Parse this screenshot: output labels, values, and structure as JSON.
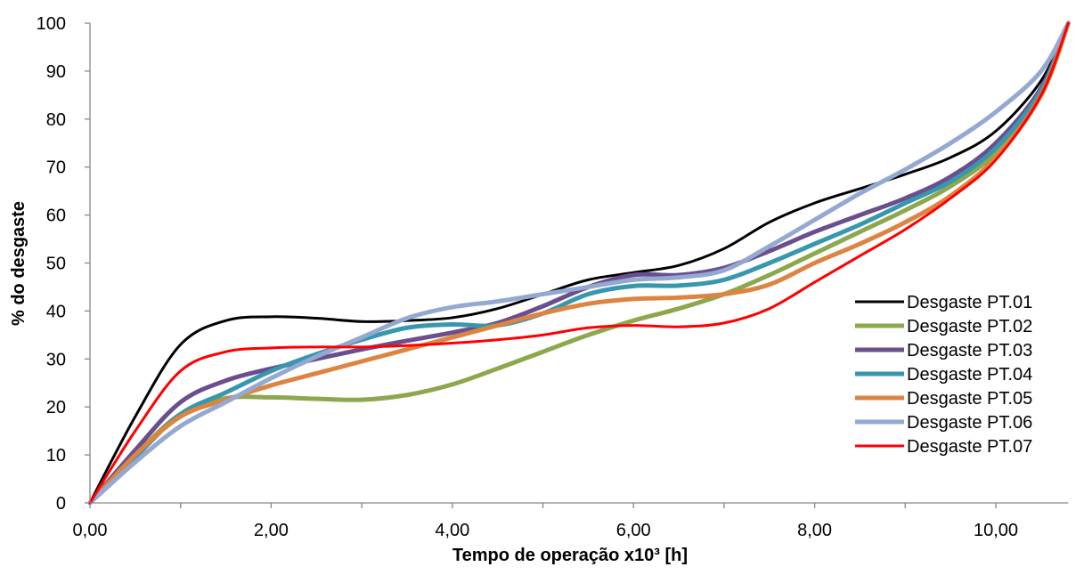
{
  "chart_data": {
    "type": "line",
    "title": "",
    "xlabel": "Tempo de operação x10³ [h]",
    "ylabel": "% do desgaste",
    "xlim": [
      0,
      10.8
    ],
    "ylim": [
      0,
      100
    ],
    "x_ticks": [
      0,
      2,
      4,
      6,
      8,
      10
    ],
    "x_tick_labels": [
      "0,00",
      "2,00",
      "4,00",
      "6,00",
      "8,00",
      "10,00"
    ],
    "x_minor_ticks": [
      1,
      3,
      5,
      7,
      9
    ],
    "y_ticks": [
      0,
      10,
      20,
      30,
      40,
      50,
      60,
      70,
      80,
      90,
      100
    ],
    "y_tick_labels": [
      "0",
      "10",
      "20",
      "30",
      "40",
      "50",
      "60",
      "70",
      "80",
      "90",
      "100"
    ],
    "grid": false,
    "legend_position": "right",
    "series": [
      {
        "name": "Desgaste PT.01",
        "color": "#000000",
        "points": [
          [
            0,
            0
          ],
          [
            0.5,
            18
          ],
          [
            1,
            33
          ],
          [
            1.5,
            38
          ],
          [
            2,
            38.8
          ],
          [
            2.5,
            38.5
          ],
          [
            3,
            37.8
          ],
          [
            3.5,
            38
          ],
          [
            4,
            38.6
          ],
          [
            4.5,
            40.5
          ],
          [
            5,
            43.5
          ],
          [
            5.5,
            46.5
          ],
          [
            6,
            48
          ],
          [
            6.5,
            49.5
          ],
          [
            7,
            53
          ],
          [
            7.5,
            58.5
          ],
          [
            8,
            62.5
          ],
          [
            8.5,
            65.5
          ],
          [
            9,
            68.5
          ],
          [
            9.5,
            72
          ],
          [
            10,
            77.5
          ],
          [
            10.5,
            88
          ],
          [
            10.8,
            100
          ]
        ]
      },
      {
        "name": "Desgaste PT.02",
        "color": "#8BA84C",
        "points": [
          [
            0,
            0
          ],
          [
            0.5,
            10
          ],
          [
            1,
            18.5
          ],
          [
            1.5,
            21.8
          ],
          [
            2,
            22
          ],
          [
            2.5,
            21.7
          ],
          [
            3,
            21.5
          ],
          [
            3.5,
            22.5
          ],
          [
            4,
            24.7
          ],
          [
            4.5,
            28
          ],
          [
            5,
            31.5
          ],
          [
            5.5,
            35
          ],
          [
            6,
            38
          ],
          [
            6.5,
            40.5
          ],
          [
            7,
            43.5
          ],
          [
            7.5,
            47.5
          ],
          [
            8,
            52
          ],
          [
            8.5,
            56.5
          ],
          [
            9,
            61
          ],
          [
            9.5,
            66
          ],
          [
            10,
            73
          ],
          [
            10.5,
            85
          ],
          [
            10.8,
            100
          ]
        ]
      },
      {
        "name": "Desgaste PT.03",
        "color": "#6A4E8E",
        "points": [
          [
            0,
            0
          ],
          [
            0.5,
            11
          ],
          [
            1,
            21
          ],
          [
            1.5,
            25.5
          ],
          [
            2,
            28
          ],
          [
            2.5,
            30
          ],
          [
            3,
            32
          ],
          [
            3.5,
            33.8
          ],
          [
            4,
            35.5
          ],
          [
            4.5,
            37.5
          ],
          [
            5,
            41
          ],
          [
            5.5,
            45
          ],
          [
            6,
            47.5
          ],
          [
            6.5,
            47.5
          ],
          [
            7,
            49
          ],
          [
            7.5,
            52.5
          ],
          [
            8,
            56.5
          ],
          [
            8.5,
            60
          ],
          [
            9,
            63.5
          ],
          [
            9.5,
            68
          ],
          [
            10,
            75
          ],
          [
            10.5,
            86.5
          ],
          [
            10.8,
            100
          ]
        ]
      },
      {
        "name": "Desgaste PT.04",
        "color": "#3797AE",
        "points": [
          [
            0,
            0
          ],
          [
            0.5,
            9.5
          ],
          [
            1,
            18.5
          ],
          [
            1.5,
            23
          ],
          [
            2,
            27.5
          ],
          [
            2.5,
            31
          ],
          [
            3,
            34
          ],
          [
            3.5,
            36.5
          ],
          [
            4,
            37.2
          ],
          [
            4.5,
            37
          ],
          [
            5,
            39.5
          ],
          [
            5.5,
            43.5
          ],
          [
            6,
            45.2
          ],
          [
            6.5,
            45.3
          ],
          [
            7,
            46.5
          ],
          [
            7.5,
            50
          ],
          [
            8,
            54
          ],
          [
            8.5,
            58
          ],
          [
            9,
            62.5
          ],
          [
            9.5,
            67
          ],
          [
            10,
            74
          ],
          [
            10.5,
            86
          ],
          [
            10.8,
            100
          ]
        ]
      },
      {
        "name": "Desgaste PT.05",
        "color": "#DD8440",
        "points": [
          [
            0,
            0
          ],
          [
            0.5,
            10
          ],
          [
            1,
            18
          ],
          [
            1.5,
            21.5
          ],
          [
            2,
            24.5
          ],
          [
            2.5,
            27
          ],
          [
            3,
            29.5
          ],
          [
            3.5,
            32
          ],
          [
            4,
            34.5
          ],
          [
            4.5,
            37
          ],
          [
            5,
            39.5
          ],
          [
            5.5,
            41.5
          ],
          [
            6,
            42.5
          ],
          [
            6.5,
            42.8
          ],
          [
            7,
            43.5
          ],
          [
            7.5,
            45.5
          ],
          [
            8,
            50
          ],
          [
            8.5,
            54
          ],
          [
            9,
            58.5
          ],
          [
            9.5,
            64
          ],
          [
            10,
            72
          ],
          [
            10.5,
            85
          ],
          [
            10.8,
            100
          ]
        ]
      },
      {
        "name": "Desgaste PT.06",
        "color": "#93A9D1",
        "points": [
          [
            0,
            0
          ],
          [
            0.5,
            8.5
          ],
          [
            1,
            16
          ],
          [
            1.5,
            21
          ],
          [
            2,
            26
          ],
          [
            2.5,
            30.5
          ],
          [
            3,
            34.5
          ],
          [
            3.5,
            38.5
          ],
          [
            4,
            40.8
          ],
          [
            4.5,
            42
          ],
          [
            5,
            43.5
          ],
          [
            5.5,
            45
          ],
          [
            6,
            46.5
          ],
          [
            6.5,
            47
          ],
          [
            7,
            48.5
          ],
          [
            7.5,
            53.5
          ],
          [
            8,
            59
          ],
          [
            8.5,
            64.5
          ],
          [
            9,
            69.5
          ],
          [
            9.5,
            75
          ],
          [
            10,
            81.5
          ],
          [
            10.5,
            90
          ],
          [
            10.8,
            100
          ]
        ]
      },
      {
        "name": "Desgaste PT.07",
        "color": "#FF0000",
        "points": [
          [
            0,
            0
          ],
          [
            0.5,
            15
          ],
          [
            1,
            27.5
          ],
          [
            1.5,
            31.5
          ],
          [
            2,
            32.3
          ],
          [
            2.5,
            32.5
          ],
          [
            3,
            32.5
          ],
          [
            3.5,
            32.8
          ],
          [
            4,
            33.3
          ],
          [
            4.5,
            34
          ],
          [
            5,
            35
          ],
          [
            5.5,
            36.5
          ],
          [
            6,
            37
          ],
          [
            6.5,
            36.7
          ],
          [
            7,
            37.5
          ],
          [
            7.5,
            40.5
          ],
          [
            8,
            46
          ],
          [
            8.5,
            51.5
          ],
          [
            9,
            57
          ],
          [
            9.5,
            63.5
          ],
          [
            10,
            71.5
          ],
          [
            10.5,
            85
          ],
          [
            10.8,
            100
          ]
        ]
      }
    ]
  }
}
